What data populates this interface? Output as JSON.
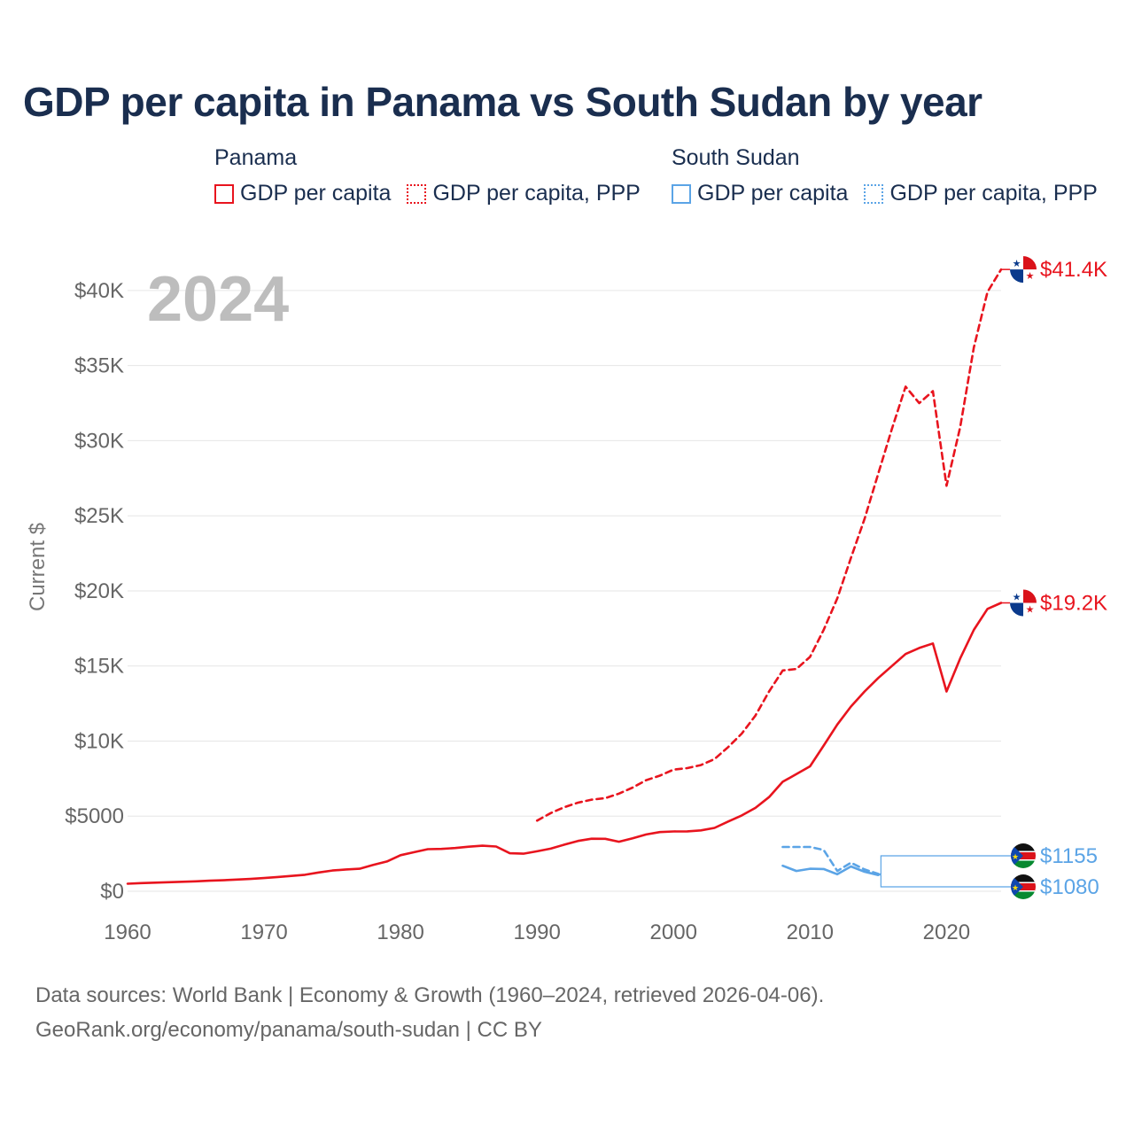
{
  "page": {
    "title": "GDP per capita in Panama vs South Sudan by year",
    "year_watermark": "2024",
    "footer_line1": "Data sources: World Bank | Economy & Growth (1960–2024, retrieved 2026-04-06).",
    "footer_line2": "GeoRank.org/economy/panama/south-sudan | CC BY"
  },
  "legend": {
    "groups": [
      {
        "name": "Panama",
        "color": "#e8141e",
        "items": [
          {
            "label": "GDP per capita",
            "style": "solid"
          },
          {
            "label": "GDP per capita, PPP",
            "style": "dotted"
          }
        ]
      },
      {
        "name": "South Sudan",
        "color": "#5ba4e6",
        "items": [
          {
            "label": "GDP per capita",
            "style": "solid"
          },
          {
            "label": "GDP per capita, PPP",
            "style": "dotted"
          }
        ]
      }
    ]
  },
  "chart_data": {
    "type": "line",
    "title": "GDP per capita in Panama vs South Sudan by year",
    "xlabel": "",
    "ylabel": "Current $",
    "xlim": [
      1960,
      2024
    ],
    "ylim": [
      0,
      42000
    ],
    "x_ticks": [
      1960,
      1970,
      1980,
      1990,
      2000,
      2010,
      2020
    ],
    "y_ticks": [
      0,
      5000,
      10000,
      15000,
      20000,
      25000,
      30000,
      35000,
      40000
    ],
    "y_tick_labels": [
      "$0",
      "$5000",
      "$10K",
      "$15K",
      "$20K",
      "$25K",
      "$30K",
      "$35K",
      "$40K"
    ],
    "grid": true,
    "series": [
      {
        "name": "Panama GDP per capita",
        "country": "Panama",
        "color": "#e8141e",
        "dash": "solid",
        "end_label": "$19.2K",
        "x": [
          1960,
          1961,
          1962,
          1963,
          1964,
          1965,
          1966,
          1967,
          1968,
          1969,
          1970,
          1971,
          1972,
          1973,
          1974,
          1975,
          1976,
          1977,
          1978,
          1979,
          1980,
          1981,
          1982,
          1983,
          1984,
          1985,
          1986,
          1987,
          1988,
          1989,
          1990,
          1991,
          1992,
          1993,
          1994,
          1995,
          1996,
          1997,
          1998,
          1999,
          2000,
          2001,
          2002,
          2003,
          2004,
          2005,
          2006,
          2007,
          2008,
          2009,
          2010,
          2011,
          2012,
          2013,
          2014,
          2015,
          2016,
          2017,
          2018,
          2019,
          2020,
          2021,
          2022,
          2023,
          2024
        ],
        "values": [
          500,
          540,
          570,
          600,
          630,
          660,
          700,
          730,
          780,
          820,
          880,
          950,
          1020,
          1100,
          1250,
          1380,
          1450,
          1500,
          1750,
          1980,
          2400,
          2600,
          2800,
          2820,
          2880,
          2970,
          3030,
          2980,
          2530,
          2500,
          2660,
          2840,
          3100,
          3350,
          3500,
          3490,
          3300,
          3520,
          3780,
          3940,
          3980,
          3990,
          4050,
          4220,
          4640,
          5050,
          5550,
          6270,
          7290,
          7800,
          8320,
          9700,
          11100,
          12300,
          13300,
          14200,
          15000,
          15800,
          16200,
          16500,
          13300,
          15500,
          17400,
          18800,
          19200
        ]
      },
      {
        "name": "Panama GDP per capita, PPP",
        "country": "Panama",
        "color": "#e8141e",
        "dash": "dashed",
        "end_label": "$41.4K",
        "x": [
          1990,
          1991,
          1992,
          1993,
          1994,
          1995,
          1996,
          1997,
          1998,
          1999,
          2000,
          2001,
          2002,
          2003,
          2004,
          2005,
          2006,
          2007,
          2008,
          2009,
          2010,
          2011,
          2012,
          2013,
          2014,
          2015,
          2016,
          2017,
          2018,
          2019,
          2020,
          2021,
          2022,
          2023,
          2024
        ],
        "values": [
          4700,
          5200,
          5600,
          5900,
          6100,
          6200,
          6500,
          6900,
          7400,
          7700,
          8100,
          8200,
          8400,
          8800,
          9600,
          10500,
          11700,
          13300,
          14700,
          14800,
          15600,
          17400,
          19500,
          22200,
          24800,
          27800,
          30800,
          33600,
          32500,
          33300,
          27000,
          30900,
          36200,
          39900,
          41400
        ]
      },
      {
        "name": "South Sudan GDP per capita",
        "country": "South Sudan",
        "color": "#5ba4e6",
        "dash": "solid",
        "end_label": "$1080",
        "x": [
          2008,
          2009,
          2010,
          2011,
          2012,
          2013,
          2014,
          2015
        ],
        "values": [
          1700,
          1350,
          1500,
          1480,
          1130,
          1650,
          1300,
          1080
        ]
      },
      {
        "name": "South Sudan GDP per capita, PPP",
        "country": "South Sudan",
        "color": "#5ba4e6",
        "dash": "dashed",
        "end_label": "$1155",
        "x": [
          2008,
          2009,
          2010,
          2011,
          2012,
          2013,
          2014,
          2015
        ],
        "values": [
          2950,
          2950,
          2950,
          2750,
          1350,
          1900,
          1450,
          1155
        ]
      }
    ]
  }
}
